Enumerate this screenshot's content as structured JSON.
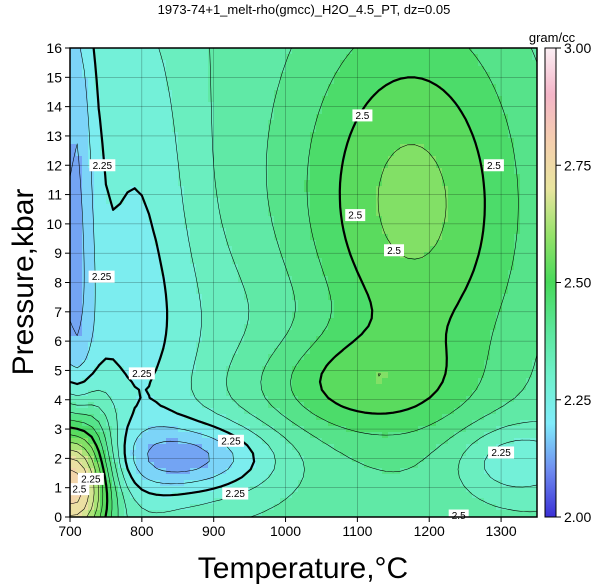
{
  "chart_data": {
    "type": "contour",
    "title": "1973-74+1_melt-rho(gmcc)_H2O_4.5_PT, dz=0.05",
    "xlabel": "Temperature,°C",
    "ylabel": "Pressure,kbar",
    "xlim": [
      700,
      1350
    ],
    "ylim": [
      0,
      16
    ],
    "x_ticks": [
      "700",
      "800",
      "900",
      "1000",
      "1100",
      "1200",
      "1300"
    ],
    "y_ticks": [
      "0",
      "1",
      "2",
      "3",
      "4",
      "5",
      "6",
      "7",
      "8",
      "9",
      "10",
      "11",
      "12",
      "13",
      "14",
      "15",
      "16"
    ],
    "grid": true,
    "contour_interval": 0.05,
    "highlighted_levels": [
      2.25,
      2.5
    ],
    "contour_labels": [
      {
        "text": "2.25",
        "x": 745,
        "y": 12.0
      },
      {
        "text": "2.25",
        "x": 744,
        "y": 8.2
      },
      {
        "text": "2.25",
        "x": 800,
        "y": 4.9
      },
      {
        "text": "2.25",
        "x": 924,
        "y": 2.6
      },
      {
        "text": "2.25",
        "x": 729,
        "y": 1.3
      },
      {
        "text": "2.25",
        "x": 930,
        "y": 0.8
      },
      {
        "text": "2.25",
        "x": 1300,
        "y": 2.2
      },
      {
        "text": "2.5",
        "x": 713,
        "y": 0.95
      },
      {
        "text": "2.5",
        "x": 1107,
        "y": 13.7
      },
      {
        "text": "2.5",
        "x": 1097,
        "y": 10.3
      },
      {
        "text": "2.5",
        "x": 1290,
        "y": 12.0
      },
      {
        "text": "2.5",
        "x": 1151,
        "y": 9.1
      },
      {
        "text": "2.5",
        "x": 1241,
        "y": 0.05
      }
    ],
    "colorbar": {
      "unit": "gram/cc",
      "min": 2.0,
      "max": 3.0,
      "ticks": [
        "2.00",
        "2.25",
        "2.50",
        "2.75",
        "3.00"
      ],
      "stops": [
        {
          "value": 2.0,
          "color": "#3a2fd6"
        },
        {
          "value": 2.1,
          "color": "#6f8cf0"
        },
        {
          "value": 2.2,
          "color": "#80ecfb"
        },
        {
          "value": 2.3,
          "color": "#6ff1cc"
        },
        {
          "value": 2.4,
          "color": "#5be69a"
        },
        {
          "value": 2.5,
          "color": "#47d95a"
        },
        {
          "value": 2.6,
          "color": "#95e26a"
        },
        {
          "value": 2.7,
          "color": "#e9e59f"
        },
        {
          "value": 2.8,
          "color": "#f5cfae"
        },
        {
          "value": 2.9,
          "color": "#f4b5c8"
        },
        {
          "value": 3.0,
          "color": "#fbeff4"
        }
      ]
    },
    "colors": {
      "contour_line": "#000000",
      "grid_line": "#000000",
      "background": "#ffffff"
    }
  }
}
